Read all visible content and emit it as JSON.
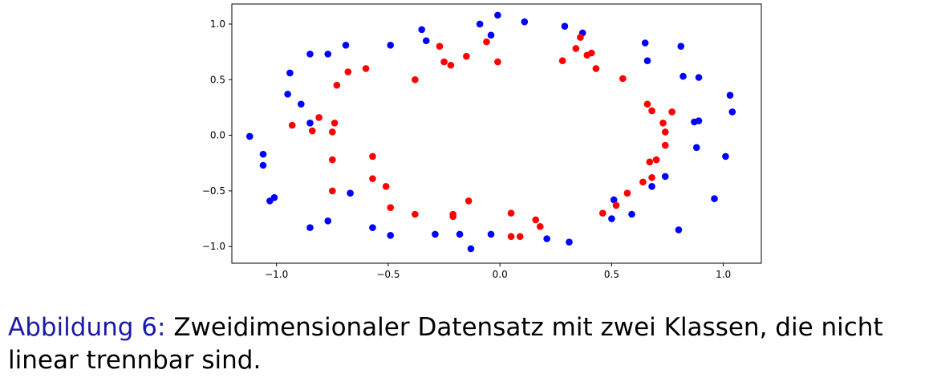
{
  "chart_data": {
    "type": "scatter",
    "title": "",
    "xlabel": "",
    "ylabel": "",
    "xlim": [
      -1.2,
      1.17
    ],
    "ylim": [
      -1.15,
      1.18
    ],
    "grid": false,
    "x_ticks": [
      -1.0,
      -0.5,
      0.0,
      0.5,
      1.0
    ],
    "x_tick_labels": [
      "−1.0",
      "−0.5",
      "0.0",
      "0.5",
      "1.0"
    ],
    "y_ticks": [
      1.0,
      0.5,
      0.0,
      -0.5,
      -1.0
    ],
    "y_tick_labels": [
      "1.0",
      "0.5",
      "0.0",
      "−0.5",
      "−1.0"
    ],
    "series": [
      {
        "color": "#0000ff",
        "points": [
          [
            -1.12,
            -0.01
          ],
          [
            -1.06,
            -0.17
          ],
          [
            -1.06,
            -0.27
          ],
          [
            -1.03,
            -0.59
          ],
          [
            -1.01,
            -0.56
          ],
          [
            -0.95,
            0.37
          ],
          [
            -0.94,
            0.56
          ],
          [
            -0.89,
            0.28
          ],
          [
            -0.85,
            0.11
          ],
          [
            -0.85,
            0.73
          ],
          [
            -0.85,
            -0.83
          ],
          [
            -0.77,
            0.73
          ],
          [
            -0.77,
            -0.77
          ],
          [
            -0.69,
            0.81
          ],
          [
            -0.67,
            -0.52
          ],
          [
            -0.57,
            -0.83
          ],
          [
            -0.49,
            0.81
          ],
          [
            -0.49,
            -0.9
          ],
          [
            -0.35,
            0.95
          ],
          [
            -0.33,
            0.85
          ],
          [
            -0.29,
            -0.89
          ],
          [
            -0.18,
            -0.89
          ],
          [
            -0.13,
            -1.02
          ],
          [
            -0.09,
            1.0
          ],
          [
            -0.04,
            0.9
          ],
          [
            -0.04,
            -0.89
          ],
          [
            -0.01,
            1.08
          ],
          [
            0.11,
            1.02
          ],
          [
            0.21,
            -0.93
          ],
          [
            0.29,
            0.98
          ],
          [
            0.31,
            -0.96
          ],
          [
            0.37,
            0.92
          ],
          [
            0.5,
            -0.75
          ],
          [
            0.51,
            -0.58
          ],
          [
            0.59,
            -0.71
          ],
          [
            0.65,
            0.83
          ],
          [
            0.66,
            0.67
          ],
          [
            0.68,
            -0.46
          ],
          [
            0.74,
            -0.37
          ],
          [
            0.8,
            -0.85
          ],
          [
            0.81,
            0.8
          ],
          [
            0.82,
            0.53
          ],
          [
            0.87,
            0.12
          ],
          [
            0.88,
            -0.11
          ],
          [
            0.89,
            0.52
          ],
          [
            0.89,
            0.13
          ],
          [
            0.96,
            -0.57
          ],
          [
            1.01,
            -0.19
          ],
          [
            1.03,
            0.36
          ],
          [
            1.04,
            0.21
          ]
        ]
      },
      {
        "color": "#ff0000",
        "points": [
          [
            -0.93,
            0.09
          ],
          [
            -0.84,
            0.04
          ],
          [
            -0.81,
            0.16
          ],
          [
            -0.75,
            0.03
          ],
          [
            -0.75,
            -0.22
          ],
          [
            -0.75,
            -0.5
          ],
          [
            -0.74,
            0.11
          ],
          [
            -0.73,
            0.45
          ],
          [
            -0.68,
            0.57
          ],
          [
            -0.6,
            0.6
          ],
          [
            -0.57,
            -0.19
          ],
          [
            -0.57,
            -0.39
          ],
          [
            -0.51,
            -0.46
          ],
          [
            -0.49,
            -0.65
          ],
          [
            -0.38,
            -0.71
          ],
          [
            -0.38,
            0.5
          ],
          [
            -0.27,
            0.8
          ],
          [
            -0.25,
            0.66
          ],
          [
            -0.22,
            0.63
          ],
          [
            -0.21,
            -0.71
          ],
          [
            -0.21,
            -0.73
          ],
          [
            -0.15,
            0.71
          ],
          [
            -0.14,
            -0.59
          ],
          [
            -0.06,
            0.84
          ],
          [
            -0.01,
            0.66
          ],
          [
            0.05,
            -0.7
          ],
          [
            0.05,
            -0.91
          ],
          [
            0.09,
            -0.91
          ],
          [
            0.16,
            -0.76
          ],
          [
            0.18,
            -0.82
          ],
          [
            0.28,
            0.67
          ],
          [
            0.34,
            0.78
          ],
          [
            0.36,
            0.88
          ],
          [
            0.39,
            0.72
          ],
          [
            0.41,
            0.74
          ],
          [
            0.43,
            0.6
          ],
          [
            0.46,
            -0.7
          ],
          [
            0.55,
            0.51
          ],
          [
            0.57,
            -0.52
          ],
          [
            0.66,
            0.28
          ],
          [
            0.68,
            0.22
          ],
          [
            0.67,
            -0.24
          ],
          [
            0.7,
            -0.22
          ],
          [
            0.73,
            0.11
          ],
          [
            0.74,
            0.03
          ],
          [
            0.74,
            -0.09
          ],
          [
            0.77,
            0.21
          ],
          [
            0.68,
            -0.38
          ],
          [
            0.64,
            -0.42
          ],
          [
            0.52,
            -0.63
          ]
        ]
      }
    ]
  },
  "caption": {
    "label": "Abbildung 6",
    "separator": ":",
    "text": " Zweidimensionaler Datensatz mit zwei Klassen, die nicht linear trennbar sind."
  }
}
